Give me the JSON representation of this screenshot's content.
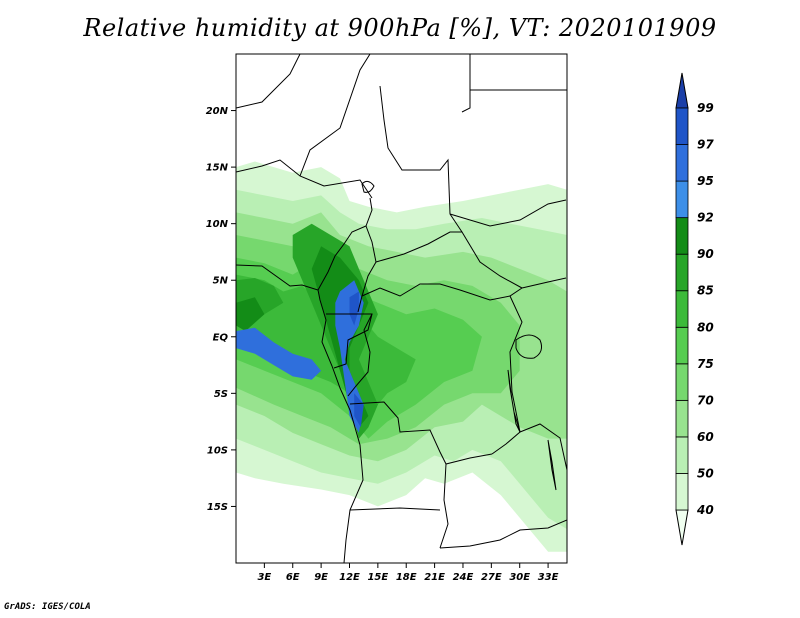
{
  "title": "Relative humidity at 900hPa [%], VT: 2020101909",
  "footer": "GrADS: IGES/COLA",
  "map": {
    "lon_range": [
      0,
      35
    ],
    "lat_range": [
      -20,
      25
    ],
    "lon_ticks": [
      {
        "value": 3,
        "label": "3E"
      },
      {
        "value": 6,
        "label": "6E"
      },
      {
        "value": 9,
        "label": "9E"
      },
      {
        "value": 12,
        "label": "12E"
      },
      {
        "value": 15,
        "label": "15E"
      },
      {
        "value": 18,
        "label": "18E"
      },
      {
        "value": 21,
        "label": "21E"
      },
      {
        "value": 24,
        "label": "24E"
      },
      {
        "value": 27,
        "label": "27E"
      },
      {
        "value": 30,
        "label": "30E"
      },
      {
        "value": 33,
        "label": "33E"
      }
    ],
    "lat_ticks": [
      {
        "value": 20,
        "label": "20N"
      },
      {
        "value": 15,
        "label": "15N"
      },
      {
        "value": 10,
        "label": "10N"
      },
      {
        "value": 5,
        "label": "5N"
      },
      {
        "value": 0,
        "label": "EQ"
      },
      {
        "value": -5,
        "label": "5S"
      },
      {
        "value": -10,
        "label": "10S"
      },
      {
        "value": -15,
        "label": "15S"
      }
    ]
  },
  "colorbar": {
    "levels": [
      "40",
      "50",
      "60",
      "70",
      "75",
      "80",
      "85",
      "90",
      "92",
      "95",
      "97",
      "99"
    ],
    "colors": [
      "#f0fff0",
      "#d6f7d2",
      "#b9efb4",
      "#98e38f",
      "#76d86e",
      "#56cd51",
      "#3cba3a",
      "#27a528",
      "#138c17",
      "#3d8fe8",
      "#2f6fdc",
      "#1f55c8",
      "#1b3fa8"
    ]
  },
  "chart_data": {
    "type": "heatmap",
    "title": "Relative humidity at 900hPa [%], VT: 2020101909",
    "variable": "Relative humidity",
    "units": "%",
    "level": "900hPa",
    "valid_time": "2020101909",
    "lon_range": [
      0,
      35
    ],
    "lat_range": [
      -20,
      25
    ],
    "contour_levels": [
      40,
      50,
      60,
      70,
      75,
      80,
      85,
      90,
      92,
      95,
      97,
      99
    ],
    "regions": [
      {
        "value": 45,
        "polygon": [
          [
            0,
            15
          ],
          [
            2,
            15.5
          ],
          [
            4,
            15
          ],
          [
            6,
            14.5
          ],
          [
            9,
            15
          ],
          [
            11,
            14
          ],
          [
            12,
            12
          ],
          [
            14,
            11.5
          ],
          [
            17,
            11
          ],
          [
            20,
            11.5
          ],
          [
            24,
            12
          ],
          [
            27,
            12.5
          ],
          [
            30,
            13
          ],
          [
            33,
            13.5
          ],
          [
            35,
            13
          ],
          [
            35,
            -19
          ],
          [
            33,
            -19
          ],
          [
            31,
            -17
          ],
          [
            28,
            -14
          ],
          [
            25,
            -12
          ],
          [
            22,
            -13
          ],
          [
            20,
            -12.5
          ],
          [
            18,
            -14
          ],
          [
            15,
            -15
          ],
          [
            12,
            -14
          ],
          [
            9,
            -13.5
          ],
          [
            5,
            -13
          ],
          [
            2,
            -12.5
          ],
          [
            0,
            -12
          ]
        ]
      },
      {
        "value": 55,
        "polygon": [
          [
            0,
            13
          ],
          [
            3,
            12.5
          ],
          [
            6,
            12
          ],
          [
            9,
            12.5
          ],
          [
            11,
            11
          ],
          [
            13,
            10
          ],
          [
            16,
            9.5
          ],
          [
            19,
            9.5
          ],
          [
            22,
            10
          ],
          [
            26,
            10.5
          ],
          [
            29,
            10
          ],
          [
            32,
            9.5
          ],
          [
            35,
            9
          ],
          [
            35,
            -17
          ],
          [
            33,
            -16
          ],
          [
            30,
            -13
          ],
          [
            28,
            -11
          ],
          [
            25,
            -10
          ],
          [
            23,
            -11
          ],
          [
            21,
            -10.5
          ],
          [
            18,
            -12
          ],
          [
            15,
            -13
          ],
          [
            12,
            -12.5
          ],
          [
            9,
            -12
          ],
          [
            6,
            -11
          ],
          [
            3,
            -10
          ],
          [
            0,
            -9
          ]
        ]
      },
      {
        "value": 65,
        "polygon": [
          [
            0,
            11
          ],
          [
            3,
            10.5
          ],
          [
            6,
            10
          ],
          [
            9,
            11
          ],
          [
            11,
            9
          ],
          [
            14,
            8
          ],
          [
            17,
            7.5
          ],
          [
            20,
            7
          ],
          [
            24,
            7.5
          ],
          [
            27,
            7
          ],
          [
            30,
            6
          ],
          [
            33,
            5
          ],
          [
            35,
            4
          ],
          [
            35,
            -9
          ],
          [
            33,
            -9
          ],
          [
            30,
            -8
          ],
          [
            28,
            -7
          ],
          [
            26,
            -6
          ],
          [
            24,
            -7.5
          ],
          [
            21,
            -8
          ],
          [
            18,
            -10
          ],
          [
            15,
            -11
          ],
          [
            12,
            -10.5
          ],
          [
            9,
            -9.5
          ],
          [
            6,
            -8.5
          ],
          [
            3,
            -7
          ],
          [
            0,
            -6
          ]
        ]
      },
      {
        "value": 72,
        "polygon": [
          [
            0,
            9
          ],
          [
            3,
            8.5
          ],
          [
            6,
            8
          ],
          [
            8,
            9
          ],
          [
            10,
            7.5
          ],
          [
            13,
            6
          ],
          [
            16,
            5
          ],
          [
            19,
            4.5
          ],
          [
            22,
            5
          ],
          [
            25,
            4.5
          ],
          [
            28,
            3
          ],
          [
            30,
            1
          ],
          [
            30,
            -3
          ],
          [
            28,
            -5
          ],
          [
            25,
            -5
          ],
          [
            22,
            -6
          ],
          [
            19,
            -8
          ],
          [
            16,
            -9
          ],
          [
            13,
            -9.5
          ],
          [
            10,
            -8
          ],
          [
            7,
            -7
          ],
          [
            4,
            -6
          ],
          [
            0,
            -4.5
          ]
        ]
      },
      {
        "value": 78,
        "polygon": [
          [
            0,
            7
          ],
          [
            3,
            6.5
          ],
          [
            6,
            5.5
          ],
          [
            8,
            6.5
          ],
          [
            10,
            5
          ],
          [
            12,
            4
          ],
          [
            15,
            3
          ],
          [
            18,
            2
          ],
          [
            21,
            2.5
          ],
          [
            24,
            1.5
          ],
          [
            26,
            0
          ],
          [
            25,
            -3
          ],
          [
            22,
            -4
          ],
          [
            19,
            -6
          ],
          [
            16,
            -7.5
          ],
          [
            14,
            -9
          ],
          [
            12,
            -7
          ],
          [
            9,
            -5
          ],
          [
            6,
            -4
          ],
          [
            3,
            -3
          ],
          [
            0,
            -2
          ]
        ]
      },
      {
        "value": 82,
        "polygon": [
          [
            0,
            5.5
          ],
          [
            3,
            5
          ],
          [
            5,
            4
          ],
          [
            7,
            4.5
          ],
          [
            9,
            3
          ],
          [
            11,
            3.5
          ],
          [
            13,
            2
          ],
          [
            15,
            0
          ],
          [
            17,
            -1
          ],
          [
            19,
            -2
          ],
          [
            18,
            -4
          ],
          [
            16,
            -5
          ],
          [
            14,
            -7
          ],
          [
            12,
            -5
          ],
          [
            10,
            -4
          ],
          [
            7,
            -3
          ],
          [
            4,
            -2
          ],
          [
            1,
            -1
          ],
          [
            0,
            -1
          ]
        ]
      },
      {
        "value": 87,
        "polygon": [
          [
            0,
            5
          ],
          [
            2,
            5.2
          ],
          [
            4,
            4.5
          ],
          [
            5,
            3
          ],
          [
            3,
            2
          ],
          [
            1,
            2.5
          ],
          [
            0,
            3
          ]
        ]
      },
      {
        "value": 87,
        "polygon": [
          [
            6,
            9
          ],
          [
            8,
            10
          ],
          [
            10,
            9
          ],
          [
            12,
            8
          ],
          [
            13,
            6
          ],
          [
            14,
            4
          ],
          [
            15,
            2
          ],
          [
            14,
            0
          ],
          [
            13,
            -2
          ],
          [
            14,
            -4
          ],
          [
            15,
            -6
          ],
          [
            14,
            -8
          ],
          [
            13,
            -9
          ],
          [
            12,
            -6
          ],
          [
            11,
            -3
          ],
          [
            10,
            -1
          ],
          [
            9,
            1
          ],
          [
            8,
            3
          ],
          [
            7,
            5
          ],
          [
            6,
            7
          ]
        ]
      },
      {
        "value": 91,
        "polygon": [
          [
            0,
            3
          ],
          [
            2,
            3.5
          ],
          [
            3,
            2
          ],
          [
            1,
            0.5
          ],
          [
            0,
            1
          ]
        ]
      },
      {
        "value": 91,
        "polygon": [
          [
            9,
            8
          ],
          [
            11,
            7
          ],
          [
            13,
            5
          ],
          [
            14,
            3
          ],
          [
            13,
            1
          ],
          [
            12,
            -1
          ],
          [
            12,
            -3
          ],
          [
            13,
            -5
          ],
          [
            14,
            -7
          ],
          [
            13,
            -8
          ],
          [
            12,
            -6
          ],
          [
            11,
            -3
          ],
          [
            10,
            0
          ],
          [
            9,
            3
          ],
          [
            8,
            6
          ]
        ]
      },
      {
        "value": 96,
        "polygon": [
          [
            0,
            0.5
          ],
          [
            2,
            0.8
          ],
          [
            4,
            -0.5
          ],
          [
            6,
            -1.5
          ],
          [
            8,
            -2
          ],
          [
            9,
            -3
          ],
          [
            8,
            -3.8
          ],
          [
            6,
            -3.5
          ],
          [
            4,
            -2.5
          ],
          [
            2,
            -1.5
          ],
          [
            0,
            -1
          ]
        ]
      },
      {
        "value": 96,
        "polygon": [
          [
            11,
            4
          ],
          [
            12.5,
            5
          ],
          [
            13.5,
            3
          ],
          [
            13,
            1
          ],
          [
            12,
            -0.5
          ],
          [
            11.5,
            -2
          ],
          [
            12.5,
            -4
          ],
          [
            13.5,
            -6
          ],
          [
            13,
            -8.5
          ],
          [
            12,
            -7
          ],
          [
            11.5,
            -4
          ],
          [
            11,
            -1
          ],
          [
            10.5,
            1
          ],
          [
            10.5,
            3
          ]
        ]
      },
      {
        "value": 98,
        "polygon": [
          [
            12,
            3.5
          ],
          [
            13,
            4
          ],
          [
            13,
            2.5
          ],
          [
            12.5,
            1
          ],
          [
            12,
            2
          ]
        ]
      },
      {
        "value": 98,
        "polygon": [
          [
            12.5,
            -5
          ],
          [
            13.5,
            -6
          ],
          [
            13.2,
            -8
          ],
          [
            12.5,
            -7
          ]
        ]
      }
    ]
  }
}
